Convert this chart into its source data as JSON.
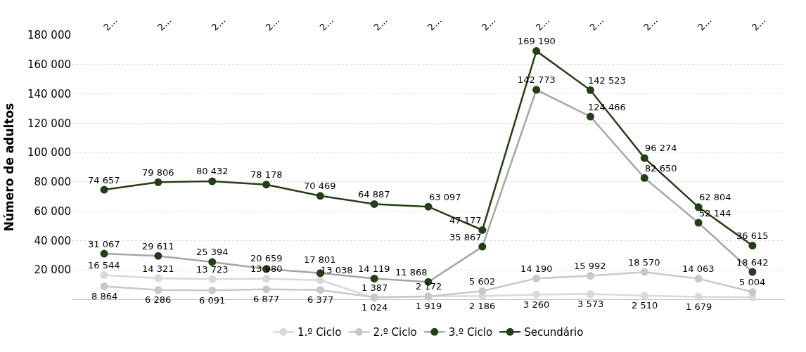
{
  "chart_data": {
    "type": "line",
    "ylabel": "Número de adultos",
    "categories": [
      "2…",
      "2…",
      "2…",
      "2…",
      "2…",
      "2…",
      "2…",
      "2…",
      "2…",
      "2…",
      "2…",
      "2…",
      "2…"
    ],
    "ylim": [
      0,
      180000
    ],
    "yticks": [
      {
        "value": 20000,
        "label": "20 000"
      },
      {
        "value": 40000,
        "label": "40 000"
      },
      {
        "value": 60000,
        "label": "60 000"
      },
      {
        "value": 80000,
        "label": "80 000"
      },
      {
        "value": 100000,
        "label": "100 000"
      },
      {
        "value": 120000,
        "label": "120 000"
      },
      {
        "value": 140000,
        "label": "140 000"
      },
      {
        "value": 160000,
        "label": "160 000"
      },
      {
        "value": 180000,
        "label": "180 000"
      }
    ],
    "grid": "y",
    "legend": "bottom",
    "marker": "circle",
    "line_style": "solid",
    "series": [
      {
        "name": "1.º Ciclo",
        "color": "#d9d9d9",
        "values": [
          16544,
          14321,
          13723,
          13980,
          13038,
          1024,
          2172,
          2186,
          3260,
          3573,
          2510,
          1679,
          1400
        ],
        "value_labels": [
          "16 544",
          "14 321",
          "13 723",
          "13 980",
          "13 038",
          "1 024",
          "2 172",
          "2 186",
          "3 260",
          "3 573",
          "2 510",
          "1 679",
          null
        ]
      },
      {
        "name": "2.º Ciclo",
        "color": "#c8c8c8",
        "values": [
          8864,
          6286,
          6091,
          6877,
          6377,
          1387,
          1919,
          5602,
          14190,
          15992,
          18570,
          14063,
          5004
        ],
        "value_labels": [
          "8 864",
          "6 286",
          "6 091",
          "6 877",
          "6 377",
          "1 387",
          "1 919",
          "5 602",
          "14 190",
          "15 992",
          "18 570",
          "14 063",
          "5 004"
        ]
      },
      {
        "name": "3.º Ciclo",
        "color": "#a6a6a6",
        "colors": [
          "#243f17",
          "#243f17",
          "#243f17",
          "#243f17",
          "#243f17",
          "#243f17",
          "#243f17",
          "#243f17",
          "#243f17",
          "#243f17",
          "#243f17",
          "#243f17",
          "#243f17"
        ],
        "values": [
          31067,
          29611,
          25394,
          20659,
          17801,
          14119,
          11868,
          35867,
          142773,
          124466,
          82650,
          52144,
          18642
        ],
        "value_labels": [
          "31 067",
          "29 611",
          "25 394",
          "20 659",
          "17 801",
          "14 119",
          "11 868",
          "35 867",
          "142 773",
          "124 466",
          "82 650",
          "52 144",
          "18 642"
        ]
      },
      {
        "name": "Secundário",
        "color": "#243f17",
        "values": [
          74657,
          79806,
          80432,
          78178,
          70469,
          64887,
          63097,
          47177,
          169190,
          142523,
          96274,
          62804,
          36615
        ],
        "value_labels": [
          "74 657",
          "79 806",
          "80 432",
          "78 178",
          "70 469",
          "64 887",
          "63 097",
          "47 177",
          "169 190",
          "142 523",
          "96 274",
          "62 804",
          "36 615"
        ]
      }
    ]
  }
}
